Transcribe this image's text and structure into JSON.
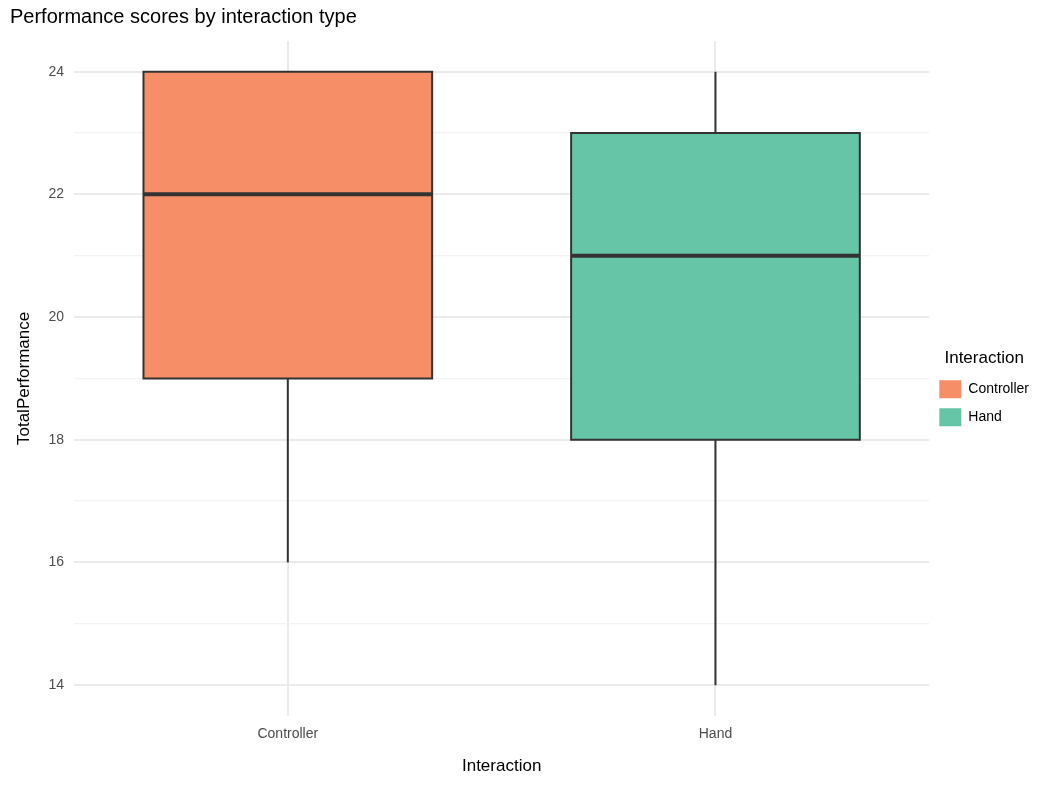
{
  "chart_data": {
    "type": "box",
    "title": "Performance scores by interaction type",
    "xlabel": "Interaction",
    "ylabel": "TotalPerformance",
    "legend_title": "Interaction",
    "legend": "right",
    "grid": true,
    "categories": [
      "Controller",
      "Hand"
    ],
    "series": [
      {
        "name": "Controller",
        "color": "#f68f67",
        "boxes": [
          {
            "low": 16,
            "q1": 19,
            "median": 22,
            "q3": 24,
            "high": 24
          },
          null
        ]
      },
      {
        "name": "Hand",
        "color": "#66c5a6",
        "boxes": [
          null,
          {
            "low": 14,
            "q1": 18,
            "median": 21,
            "q3": 23,
            "high": 24
          }
        ]
      }
    ],
    "ylim": [
      13.5,
      24.5
    ],
    "yticks": [
      14,
      {
        "value": 15,
        "label": null
      },
      16,
      {
        "value": 17,
        "label": null
      },
      18,
      {
        "value": 19,
        "label": null
      },
      20,
      {
        "value": 21,
        "label": null
      },
      22,
      {
        "value": 23,
        "label": null
      },
      24
    ]
  }
}
